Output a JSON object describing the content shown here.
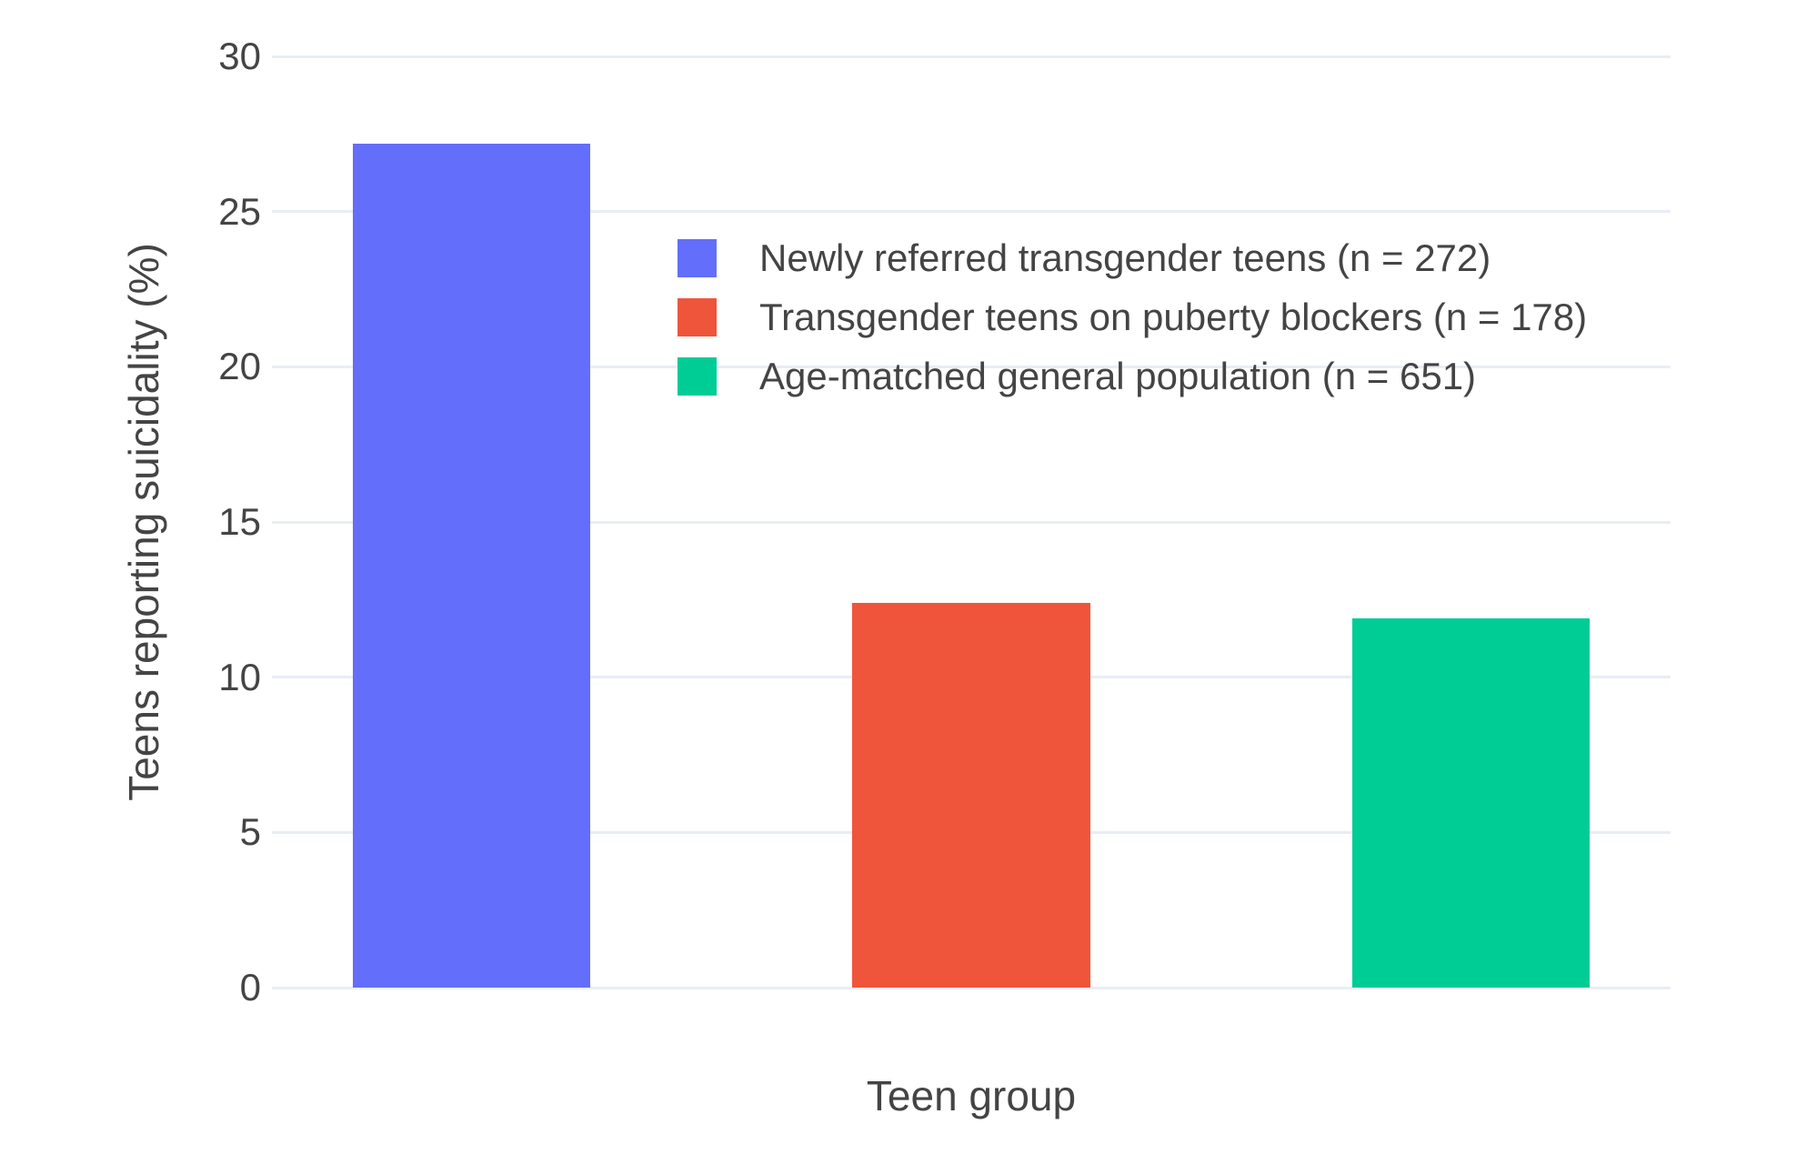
{
  "chart_data": {
    "type": "bar",
    "title": "",
    "xlabel": "Teen group",
    "ylabel": "Teens reporting suicidality (%)",
    "ylim": [
      0,
      30
    ],
    "yticks": [
      0,
      5,
      10,
      15,
      20,
      25,
      30
    ],
    "grid": true,
    "x_tick_labels_visible": false,
    "categories": [
      "Newly referred transgender teens (n = 272)",
      "Transgender teens on puberty blockers (n = 178)",
      "Age-matched general population (n = 651)"
    ],
    "values": [
      27.2,
      12.4,
      11.9
    ],
    "bar_colors": [
      "#636EFA",
      "#EF553B",
      "#00CC96"
    ],
    "legend": {
      "position": "inside upper-center-left",
      "entries": [
        {
          "label": "Newly referred transgender teens (n = 272)",
          "color": "#636EFA"
        },
        {
          "label": "Transgender teens on puberty blockers (n = 178)",
          "color": "#EF553B"
        },
        {
          "label": "Age-matched general population (n = 651)",
          "color": "#00CC96"
        }
      ]
    }
  },
  "colors": {
    "background": "#FFFFFF",
    "text": "#444444",
    "gridline": "#E9EDF5"
  }
}
